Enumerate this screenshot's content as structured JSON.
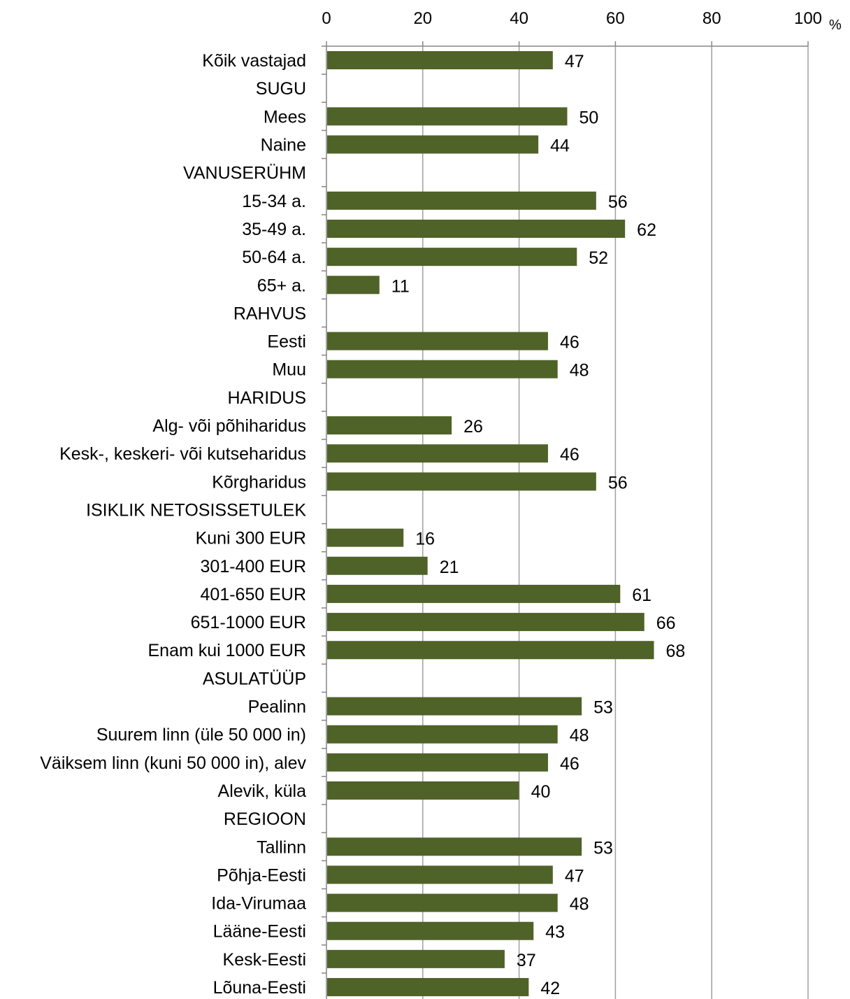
{
  "chart_data": {
    "type": "bar",
    "orientation": "horizontal",
    "unit": "%",
    "xlim": [
      0,
      100
    ],
    "x_ticks": [
      "0",
      "20",
      "40",
      "60",
      "80",
      "100"
    ],
    "grid": true,
    "categories": [
      "Kõik vastajad",
      "SUGU",
      "Mees",
      "Naine",
      "VANUSERÜHM",
      "15-34 a.",
      "35-49 a.",
      "50-64 a.",
      "65+ a.",
      "RAHVUS",
      "Eesti",
      "Muu",
      "HARIDUS",
      "Alg- või põhiharidus",
      "Kesk-, keskeri- või kutseharidus",
      "Kõrgharidus",
      "ISIKLIK NETOSISSETULEK",
      "Kuni 300 EUR",
      "301-400 EUR",
      "401-650 EUR",
      "651-1000 EUR",
      "Enam kui 1000 EUR",
      "ASULATÜÜP",
      "Pealinn",
      "Suurem linn (üle 50 000 in)",
      "Väiksem linn (kuni 50 000 in), alev",
      "Alevik, küla",
      "REGIOON",
      "Tallinn",
      "Põhja-Eesti",
      "Ida-Virumaa",
      "Lääne-Eesti",
      "Kesk-Eesti",
      "Lõuna-Eesti"
    ],
    "values": [
      47,
      null,
      50,
      44,
      null,
      56,
      62,
      52,
      11,
      null,
      46,
      48,
      null,
      26,
      46,
      56,
      null,
      16,
      21,
      61,
      66,
      68,
      null,
      53,
      48,
      46,
      40,
      null,
      53,
      47,
      48,
      43,
      37,
      42
    ],
    "value_labels": [
      "47",
      "",
      "50",
      "44",
      "",
      "56",
      "62",
      "52",
      "11",
      "",
      "46",
      "48",
      "",
      "26",
      "46",
      "56",
      "",
      "16",
      "21",
      "61",
      "66",
      "68",
      "",
      "53",
      "48",
      "46",
      "40",
      "",
      "53",
      "47",
      "48",
      "43",
      "37",
      "42"
    ],
    "colors": {
      "bar": "#4f6228",
      "grid": "#a0a0a0",
      "axis": "#868686"
    }
  }
}
